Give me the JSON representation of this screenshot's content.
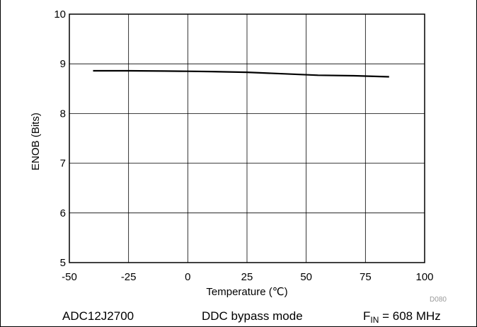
{
  "chart_data": {
    "type": "line",
    "title": "",
    "xlabel": "Temperature (℃)",
    "ylabel": "ENOB (Bits)",
    "xlim": [
      -50,
      100
    ],
    "ylim": [
      5,
      10
    ],
    "x_ticks": [
      -50,
      -25,
      0,
      25,
      50,
      75,
      100
    ],
    "y_ticks": [
      5,
      6,
      7,
      8,
      9,
      10
    ],
    "grid": true,
    "series": [
      {
        "x": [
          -40,
          -25,
          -10,
          0,
          10,
          25,
          40,
          55,
          70,
          85
        ],
        "y": [
          8.86,
          8.86,
          8.855,
          8.85,
          8.845,
          8.83,
          8.8,
          8.77,
          8.76,
          8.74
        ]
      }
    ],
    "figure_code": "D080"
  },
  "footer": {
    "device": "ADC12J2700",
    "mode": "DDC bypass mode",
    "fin_prefix": "F",
    "fin_sub": "IN",
    "fin_value": " = 608 MHz"
  },
  "colors": {
    "line": "#000000",
    "grid": "#000000",
    "background": "#ffffff"
  }
}
